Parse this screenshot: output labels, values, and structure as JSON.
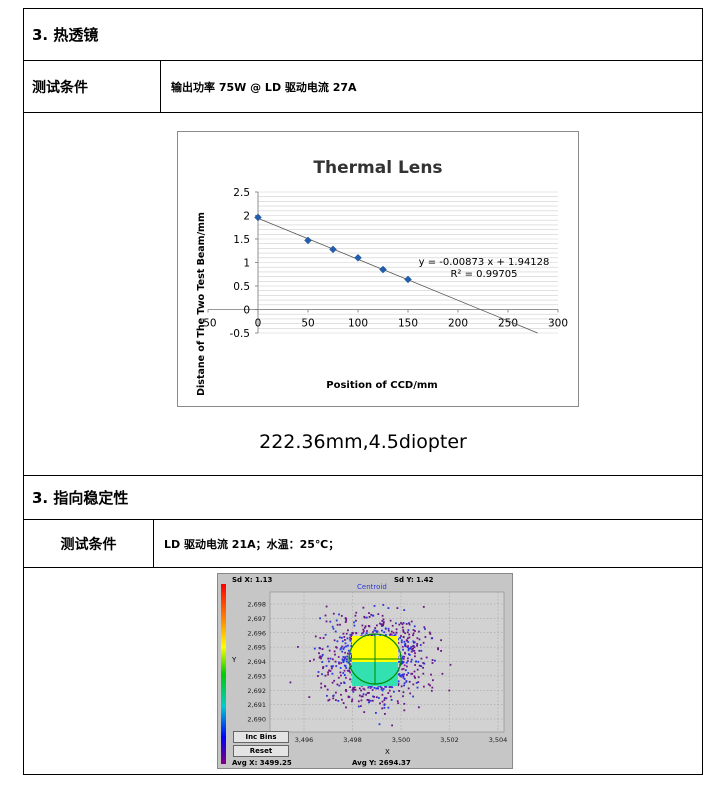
{
  "section1": {
    "title": "3.  热透镜"
  },
  "test1": {
    "label": "测试条件",
    "value": "输出功率 75W @ LD 驱动电流  27A"
  },
  "chart_data": {
    "type": "scatter",
    "title": "Thermal Lens",
    "xlabel": "Position of CCD/mm",
    "ylabel": "Distane of The Two Test Beam/mm",
    "xlim": [
      -50,
      300
    ],
    "ylim": [
      -0.5,
      2.5
    ],
    "x_ticks": [
      "-50",
      "0",
      "50",
      "100",
      "150",
      "200",
      "250",
      "300"
    ],
    "y_ticks": [
      "-0.5",
      "0",
      "0.5",
      "1",
      "1.5",
      "2",
      "2.5"
    ],
    "series": [
      {
        "x": [
          0,
          50,
          75,
          100,
          125,
          150
        ],
        "y": [
          1.96,
          1.47,
          1.28,
          1.1,
          0.85,
          0.64
        ]
      }
    ],
    "trendline": {
      "slope": -0.00873,
      "intercept": 1.94128
    },
    "equation": "y = -0.00873 x + 1.94128",
    "r_squared": "R² = 0.99705",
    "grid": true,
    "colors": {
      "marker": "#1f5fae",
      "line": "#555555"
    }
  },
  "result1": "222.36mm,4.5diopter",
  "section2": {
    "title": "3.  指向稳定性"
  },
  "test2": {
    "label": "测试条件",
    "value": "LD 驱动电流  21A；水温：25℃；"
  },
  "pointing": {
    "sd_x": "Sd X: 1.13",
    "sd_y": "Sd Y: 1.42",
    "title": "Centroid",
    "y_axis_label": "Y",
    "x_axis_label": "X",
    "y_ticks": [
      "2,698",
      "2,697",
      "2,696",
      "2,695",
      "2,694",
      "2,693",
      "2,692",
      "2,691",
      "2,690"
    ],
    "x_ticks": [
      "3,496",
      "3,498",
      "3,500",
      "3,502",
      "3,504"
    ],
    "inc_bins_label": "Inc Bins",
    "reset_label": "Reset",
    "avg_x": "Avg X: 3499.25",
    "avg_y": "Avg Y: 2694.37"
  }
}
